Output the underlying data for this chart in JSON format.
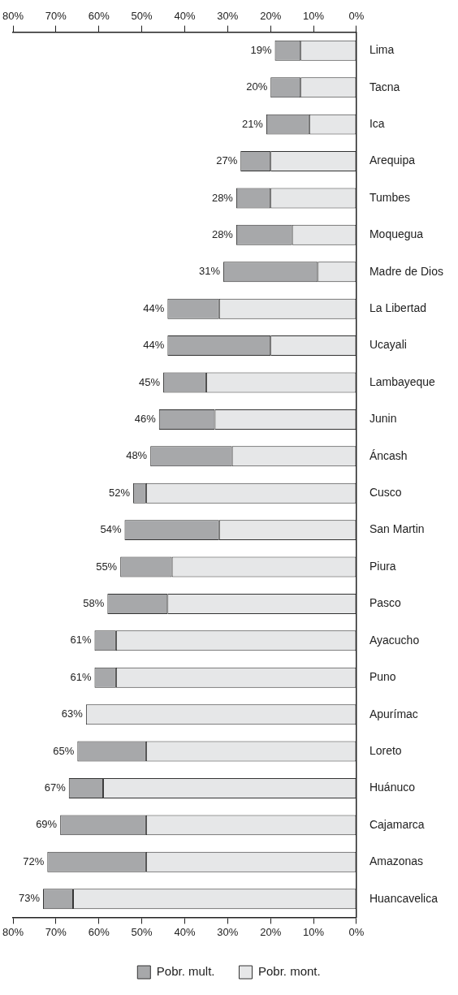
{
  "chart_data": {
    "type": "bar",
    "orientation": "horizontal",
    "stacked": true,
    "categories": [
      "Lima",
      "Tacna",
      "Ica",
      "Arequipa",
      "Tumbes",
      "Moquegua",
      "Madre de Dios",
      "La Libertad",
      "Ucayali",
      "Lambayeque",
      "Junin",
      "Áncash",
      "Cusco",
      "San Martin",
      "Piura",
      "Pasco",
      "Ayacucho",
      "Puno",
      "Apurímac",
      "Loreto",
      "Huánuco",
      "Cajamarca",
      "Amazonas",
      "Huancavelica"
    ],
    "series": [
      {
        "name": "Pobr. mont.",
        "color": "#e6e7e8",
        "values": [
          13,
          13,
          11,
          20,
          20,
          15,
          9,
          32,
          20,
          35,
          33,
          29,
          49,
          32,
          43,
          44,
          56,
          56,
          63,
          49,
          59,
          49,
          49,
          66
        ]
      },
      {
        "name": "Pobr. mult.",
        "color": "#a7a8aa",
        "values": [
          6,
          7,
          10,
          7,
          8,
          13,
          22,
          12,
          24,
          10,
          13,
          19,
          3,
          22,
          12,
          14,
          5,
          5,
          0,
          16,
          8,
          20,
          23,
          7
        ]
      }
    ],
    "totals": [
      "19%",
      "20%",
      "21%",
      "27%",
      "28%",
      "28%",
      "31%",
      "44%",
      "44%",
      "45%",
      "46%",
      "48%",
      "52%",
      "54%",
      "55%",
      "58%",
      "61%",
      "61%",
      "63%",
      "65%",
      "67%",
      "69%",
      "72%",
      "73%"
    ],
    "xlim": [
      80,
      0
    ],
    "xticks": [
      {
        "value": 80,
        "label": "80%"
      },
      {
        "value": 70,
        "label": "70%"
      },
      {
        "value": 60,
        "label": "60%"
      },
      {
        "value": 50,
        "label": "50%"
      },
      {
        "value": 40,
        "label": "40%"
      },
      {
        "value": 30,
        "label": "30%"
      },
      {
        "value": 20,
        "label": "20%"
      },
      {
        "value": 10,
        "label": "10%"
      },
      {
        "value": 0,
        "label": "0%"
      }
    ],
    "x2lim": [
      80,
      0
    ],
    "x2ticks": [
      {
        "value": 80,
        "label": "80%"
      },
      {
        "value": 70,
        "label": "70%"
      },
      {
        "value": 60,
        "label": "60%"
      },
      {
        "value": 50,
        "label": "50%"
      },
      {
        "value": 40,
        "label": "40%"
      },
      {
        "value": 30,
        "label": "30%"
      },
      {
        "value": 20,
        "label": "20%"
      },
      {
        "value": 10,
        "label": "10%"
      },
      {
        "value": 0,
        "label": "0%"
      }
    ],
    "grid": false,
    "legend": "bottom"
  }
}
